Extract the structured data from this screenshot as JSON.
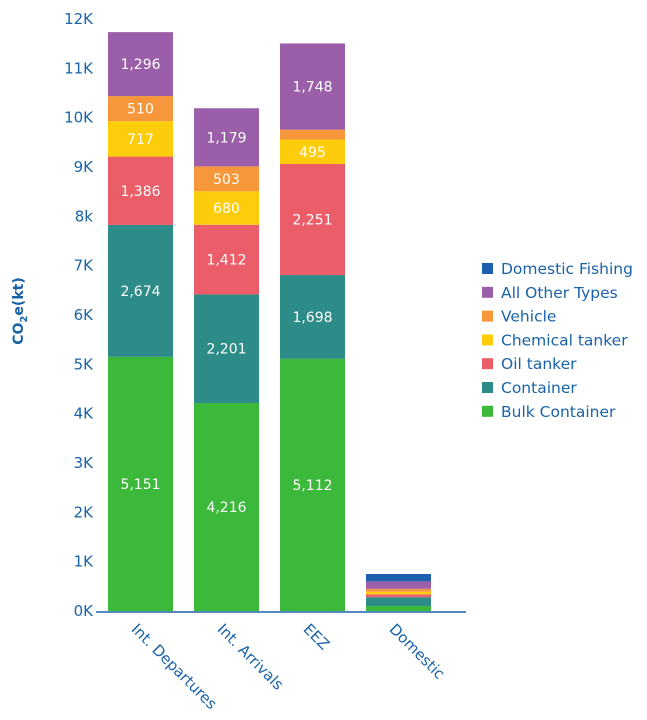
{
  "chart_data": {
    "type": "bar",
    "stacked": true,
    "categories": [
      "Int. Departures",
      "Int. Arrivals",
      "EEZ",
      "Domestic"
    ],
    "y_ticks": [
      "0K",
      "1K",
      "2K",
      "3K",
      "4K",
      "5K",
      "6K",
      "7K",
      "8k",
      "9K",
      "10K",
      "11K",
      "12K"
    ],
    "ylabel": "CO",
    "ylabel_sub": "2",
    "ylabel_suffix": "e(kt)",
    "ylim": [
      0,
      12000
    ],
    "legend_position": "right",
    "series": [
      {
        "name": "Bulk Container",
        "color": "#3cb83a",
        "values": [
          5151,
          4216,
          5112,
          100
        ],
        "labels": [
          "5,151",
          "4,216",
          "5,112",
          ""
        ]
      },
      {
        "name": "Container",
        "color": "#2e8c88",
        "values": [
          2674,
          2201,
          1698,
          180
        ],
        "labels": [
          "2,674",
          "2,201",
          "1,698",
          ""
        ]
      },
      {
        "name": "Oil tanker",
        "color": "#eb5d68",
        "values": [
          1386,
          1412,
          2251,
          60
        ],
        "labels": [
          "1,386",
          "1,412",
          "2,251",
          ""
        ]
      },
      {
        "name": "Chemical tanker",
        "color": "#fdcc0a",
        "values": [
          717,
          680,
          495,
          50
        ],
        "labels": [
          "717",
          "680",
          "495",
          ""
        ]
      },
      {
        "name": "Vehicle",
        "color": "#f5973a",
        "values": [
          510,
          503,
          200,
          60
        ],
        "labels": [
          "510",
          "503",
          "",
          ""
        ]
      },
      {
        "name": "All Other Types",
        "color": "#9a5fa8",
        "values": [
          1296,
          1179,
          1748,
          150
        ],
        "labels": [
          "1,296",
          "1,179",
          "1,748",
          ""
        ]
      },
      {
        "name": "Domestic Fishing",
        "color": "#1e5fb0",
        "values": [
          0,
          0,
          0,
          150
        ],
        "labels": [
          "",
          "",
          "",
          ""
        ]
      }
    ]
  }
}
